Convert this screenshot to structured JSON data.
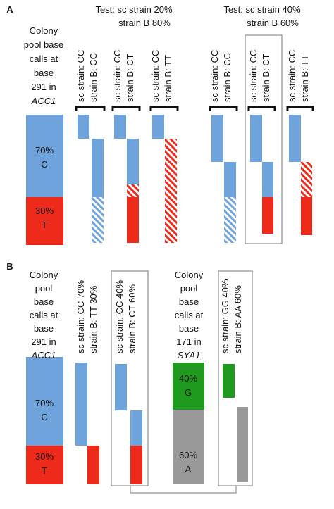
{
  "panel_a": {
    "label": "A",
    "tests": [
      [
        "Test: sc strain 20%",
        "strain B 80%"
      ],
      [
        "Test: sc strain 40%",
        "strain B 60%"
      ]
    ],
    "pool_text": [
      "Colony",
      "pool base",
      "calls at",
      "base",
      "291 in",
      "ACC1"
    ],
    "pool_bar": [
      [
        "70%",
        "C"
      ],
      [
        "30%",
        "T"
      ]
    ],
    "columns": [
      [
        "sc strain: CC",
        "strain B: CC"
      ],
      [
        "sc strain: CC",
        "strain B: CT"
      ],
      [
        "sc strain: CC",
        "strain B: TT"
      ],
      [
        "sc strain: CC",
        "strain B: CC"
      ],
      [
        "sc strain: CC",
        "strain B: CT"
      ],
      [
        "sc strain: CC",
        "strain B: TT"
      ]
    ]
  },
  "panel_b": {
    "label": "B",
    "pool_text_1": [
      "Colony",
      "pool",
      "base",
      "calls at",
      "base",
      "291 in",
      "ACC1"
    ],
    "pool_bar_1": [
      [
        "70%",
        "C"
      ],
      [
        "30%",
        "T"
      ]
    ],
    "pool_text_2": [
      "Colony",
      "pool",
      "base",
      "calls at",
      "base",
      "171 in",
      "SYA1"
    ],
    "pool_bar_2": [
      [
        "40%",
        "G"
      ],
      [
        "60%",
        "A"
      ]
    ],
    "columns": [
      [
        "sc strain: CC 70%",
        "strain B: TT 30%"
      ],
      [
        "sc strain: CC 40%",
        "strain B: CT 60%"
      ],
      [
        "sc strain: GG 40%",
        "strain B: AA 60%"
      ]
    ]
  }
}
